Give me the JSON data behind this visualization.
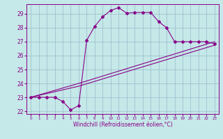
{
  "xlabel": "Windchill (Refroidissement éolien,°C)",
  "bg_color": "#c5e8e8",
  "line_color": "#880088",
  "grid_color": "#99bbcc",
  "xlim": [
    -0.5,
    23.5
  ],
  "ylim": [
    21.8,
    29.7
  ],
  "yticks": [
    22,
    23,
    24,
    25,
    26,
    27,
    28,
    29
  ],
  "xticks": [
    0,
    1,
    2,
    3,
    4,
    5,
    6,
    7,
    8,
    9,
    10,
    11,
    12,
    13,
    14,
    15,
    16,
    17,
    18,
    19,
    20,
    21,
    22,
    23
  ],
  "curve1_x": [
    0,
    1,
    2,
    3,
    4,
    5,
    6,
    7,
    8,
    9,
    10,
    11,
    12,
    13,
    14,
    15,
    16,
    17,
    18,
    19,
    20,
    21,
    22,
    23
  ],
  "curve1_y": [
    23.0,
    23.0,
    23.0,
    23.0,
    22.7,
    22.1,
    22.4,
    27.1,
    28.1,
    28.8,
    29.25,
    29.45,
    29.05,
    29.1,
    29.1,
    29.1,
    28.45,
    28.0,
    27.0,
    27.0,
    27.0,
    27.0,
    27.0,
    26.85
  ],
  "curve2_x": [
    0,
    6,
    23
  ],
  "curve2_y": [
    23.0,
    24.0,
    27.0
  ],
  "curve3_x": [
    0,
    6,
    23
  ],
  "curve3_y": [
    23.0,
    23.8,
    26.75
  ]
}
